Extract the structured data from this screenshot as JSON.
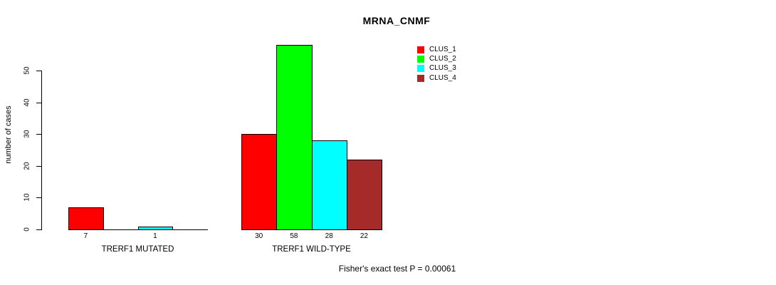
{
  "chart_data": {
    "type": "bar",
    "title": "MRNA_CNMF",
    "ylabel": "number of cases",
    "xlabel": "",
    "ylim": [
      0,
      50
    ],
    "yticks": [
      0,
      10,
      20,
      30,
      40,
      50
    ],
    "categories": [
      "TRERF1 MUTATED",
      "TRERF1 WILD-TYPE"
    ],
    "series": [
      {
        "name": "CLUS_1",
        "color": "#ff0000",
        "values": [
          7,
          30
        ]
      },
      {
        "name": "CLUS_2",
        "color": "#00ff00",
        "values": [
          0,
          58
        ]
      },
      {
        "name": "CLUS_3",
        "color": "#00ffff",
        "values": [
          1,
          28
        ]
      },
      {
        "name": "CLUS_4",
        "color": "#a52a2a",
        "values": [
          0,
          22
        ]
      }
    ],
    "bar_value_labels": "shown under each bar, omitted when value is 0",
    "annotation": "Fisher's exact test P = 0.00061",
    "legend_position": "top-right",
    "grid": false,
    "axis_color": "#000000",
    "text_color": "#000000",
    "background_color": "#ffffff"
  }
}
